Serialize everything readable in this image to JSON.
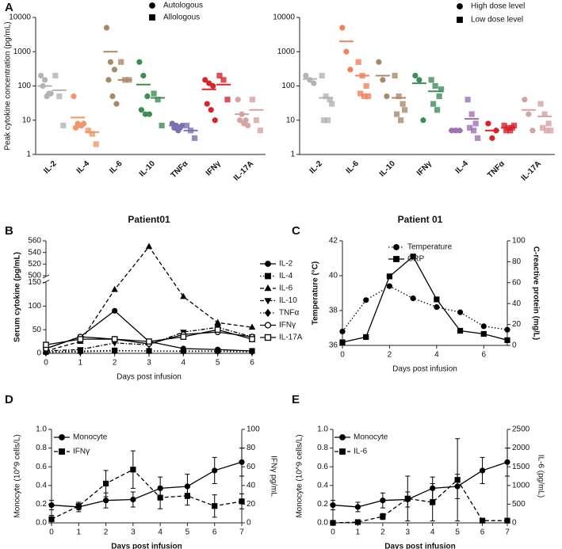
{
  "chart_data": [
    {
      "type": "dotplot",
      "panel": "A",
      "ylabel": "Peak cytokine concentration (pg/mL)",
      "ylog": true,
      "ylim": [
        1,
        10000
      ],
      "yticks": [
        1,
        10,
        100,
        1000,
        10000
      ],
      "categories": [
        "IL-2",
        "IL-4",
        "IL-6",
        "IL-10",
        "TNFα",
        "IFNγ",
        "IL-17A"
      ],
      "colors": [
        "#b3b3b3",
        "#f2956a",
        "#a88a68",
        "#3d8c52",
        "#7a70b2",
        "#d8232a",
        "#d6a3a3"
      ],
      "series": [
        {
          "name": "Autologous",
          "marker": "circle",
          "values": [
            [
              200,
              150,
              60,
              100,
              50,
              60
            ],
            [
              50,
              8,
              7,
              6,
              7,
              8
            ],
            [
              5000,
              500,
              300,
              150,
              50,
              30
            ],
            [
              500,
              200,
              50,
              20,
              15,
              15
            ],
            [
              8,
              7,
              6,
              6,
              5,
              7
            ],
            [
              150,
              120,
              100,
              30,
              20,
              10
            ],
            [
              40,
              15,
              10,
              10,
              8,
              7
            ]
          ],
          "means": [
            100,
            12,
            1000,
            110,
            7,
            80,
            15
          ]
        },
        {
          "name": "Allologous",
          "marker": "square",
          "values": [
            [
              200,
              50,
              7
            ],
            [
              5,
              4,
              2
            ],
            [
              500,
              150,
              150
            ],
            [
              60,
              40,
              7
            ],
            [
              7,
              5,
              3
            ],
            [
              200,
              150,
              40
            ],
            [
              40,
              10,
              5
            ]
          ],
          "means": [
            75,
            4.5,
            150,
            45,
            5,
            110,
            20
          ]
        }
      ]
    },
    {
      "type": "dotplot",
      "ylog": true,
      "ylim": [
        1,
        10000
      ],
      "yticks": [
        1,
        10,
        100,
        1000,
        10000
      ],
      "categories": [
        "IL-2",
        "IL-6",
        "IL-10",
        "IFNγ",
        "IL-4",
        "TNFα",
        "IL-17A"
      ],
      "colors": [
        "#b3b3b3",
        "#f2805a",
        "#a88a68",
        "#3d8c5a",
        "#a070b2",
        "#d8232a",
        "#d6a3a3"
      ],
      "series": [
        {
          "name": "High dose level",
          "marker": "circle",
          "values": [
            [
              200,
              150,
              120
            ],
            [
              5000,
              1000,
              300
            ],
            [
              500,
              150,
              50
            ],
            [
              200,
              150,
              10
            ],
            [
              5,
              5,
              5
            ],
            [
              8,
              3,
              5
            ],
            [
              40,
              15,
              5
            ]
          ],
          "means": [
            160,
            2000,
            200,
            120,
            5,
            5,
            20
          ]
        },
        {
          "name": "Low dose level",
          "marker": "square",
          "values": [
            [
              200,
              50,
              40,
              10,
              10,
              30
            ],
            [
              500,
              200,
              100,
              60,
              50,
              50
            ],
            [
              200,
              50,
              30,
              15,
              10,
              20
            ],
            [
              150,
              100,
              50,
              30,
              20,
              80
            ],
            [
              40,
              15,
              8,
              6,
              5,
              3
            ],
            [
              7,
              6,
              6,
              5,
              5,
              7
            ],
            [
              30,
              15,
              8,
              6,
              5,
              5
            ]
          ],
          "means": [
            45,
            200,
            45,
            70,
            11,
            6,
            13
          ]
        }
      ]
    },
    {
      "type": "line",
      "panel": "B",
      "title": "Patient01",
      "ylabel": "Serum cytokine  (pg/mL)",
      "xlabel": "Days post infusion",
      "ylim": [
        0,
        560
      ],
      "ybreak": [
        150,
        500
      ],
      "yticks": [
        0,
        50,
        100,
        150,
        500,
        520,
        540,
        560
      ],
      "xlim": [
        0,
        6
      ],
      "xticks": [
        0,
        1,
        2,
        3,
        4,
        5,
        6
      ],
      "x": [
        0,
        1,
        2,
        3,
        4,
        5,
        6
      ],
      "series": [
        {
          "name": "IL-2",
          "color": "#000000",
          "line": "solid",
          "marker": "circle",
          "values": [
            10,
            35,
            90,
            25,
            10,
            8,
            5
          ]
        },
        {
          "name": "IL-4",
          "color": "#000000",
          "line": "dotted",
          "marker": "square",
          "values": [
            3,
            5,
            6,
            5,
            5,
            5,
            5
          ]
        },
        {
          "name": "IL-6",
          "color": "#000000",
          "line": "dashed",
          "marker": "triangle",
          "values": [
            5,
            25,
            135,
            550,
            120,
            65,
            55
          ]
        },
        {
          "name": "IL-10",
          "color": "#000000",
          "line": "dashdot",
          "marker": "triangle-down",
          "values": [
            5,
            8,
            22,
            18,
            45,
            55,
            35
          ]
        },
        {
          "name": "TNFα",
          "color": "#000000",
          "line": "dotted",
          "marker": "diamond",
          "values": [
            2,
            3,
            5,
            5,
            4,
            4,
            3
          ]
        },
        {
          "name": "IFNγ",
          "color": "#000000",
          "line": "solid",
          "marker": "circle-open",
          "values": [
            10,
            35,
            30,
            20,
            40,
            45,
            35
          ]
        },
        {
          "name": "IL-17A",
          "color": "#000000",
          "line": "solid",
          "marker": "square-open",
          "values": [
            18,
            30,
            30,
            25,
            35,
            50,
            30
          ]
        }
      ]
    },
    {
      "type": "line",
      "panel": "C",
      "title": "Patient 01",
      "ylabel": "Temperature (°C)",
      "y2label": "C-reactive protein (mg/L)",
      "xlabel": "Days post infusion",
      "ylim": [
        36,
        42
      ],
      "yticks": [
        36,
        38,
        40,
        42
      ],
      "y2lim": [
        0,
        100
      ],
      "y2ticks": [
        0,
        20,
        40,
        60,
        80,
        100
      ],
      "xlim": [
        0,
        7
      ],
      "xticks": [
        0,
        2,
        4,
        6
      ],
      "x": [
        0,
        1,
        2,
        3,
        4,
        5,
        6,
        7
      ],
      "series": [
        {
          "name": "Temperature",
          "color": "#000000",
          "line": "dotted",
          "marker": "circle",
          "values": [
            36.8,
            38.6,
            39.4,
            38.7,
            38.2,
            37.9,
            37.1,
            36.9
          ]
        },
        {
          "name": "CRP",
          "color": "#000000",
          "line": "solid",
          "marker": "square",
          "axis": "y2",
          "values": [
            3,
            8,
            66,
            85,
            44,
            14,
            11,
            5
          ]
        }
      ]
    },
    {
      "type": "line",
      "panel": "D",
      "ylabel": "Monocyte  (10^9 cells/L)",
      "y2label": "IFNγ pg/mL",
      "xlabel": "Days post infusion",
      "xlabel_bold": true,
      "ylim": [
        0,
        1
      ],
      "yticks": [
        {
          "value": 0,
          "label": "0.0"
        },
        0.2,
        0.4,
        0.6,
        0.8,
        {
          "value": 1,
          "label": "1.0"
        }
      ],
      "y2lim": [
        0,
        100
      ],
      "y2ticks": [
        0,
        20,
        40,
        60,
        80,
        100
      ],
      "xlim": [
        0,
        7
      ],
      "xticks": [
        0,
        1,
        2,
        3,
        4,
        5,
        6,
        7
      ],
      "x": [
        0,
        1,
        2,
        3,
        4,
        5,
        6,
        7
      ],
      "series": [
        {
          "name": "Monocyte",
          "color": "#000000",
          "line": "solid",
          "marker": "circle",
          "values": [
            0.19,
            0.17,
            0.24,
            0.25,
            0.37,
            0.39,
            0.56,
            0.65
          ],
          "errors": [
            0.05,
            0.05,
            0.08,
            0.08,
            0.12,
            0.13,
            0.14,
            0.15
          ]
        },
        {
          "name": "IFNγ",
          "color": "#000000",
          "line": "dashed",
          "marker": "square",
          "axis": "y2",
          "values": [
            4,
            18,
            42,
            57,
            27,
            29,
            18,
            23
          ],
          "errors": [
            4,
            4,
            14,
            20,
            12,
            10,
            12,
            8
          ]
        }
      ]
    },
    {
      "type": "line",
      "panel": "E",
      "y2label": "IL-6 (pg/mL)",
      "ylabel": "Monocyte  (10^9 cells/L)",
      "xlabel": "Days post infusion",
      "xlabel_bold": true,
      "ylim": [
        0,
        1
      ],
      "yticks": [
        {
          "value": 0,
          "label": "0.0"
        },
        0.2,
        0.4,
        0.6,
        0.8,
        {
          "value": 1,
          "label": "1.0"
        }
      ],
      "y2lim": [
        0,
        2500
      ],
      "y2ticks": [
        0,
        500,
        1000,
        1500,
        2000,
        2500
      ],
      "xlim": [
        0,
        7
      ],
      "xticks": [
        0,
        1,
        2,
        3,
        4,
        5,
        6,
        7
      ],
      "x": [
        0,
        1,
        2,
        3,
        4,
        5,
        6,
        7
      ],
      "series": [
        {
          "name": "Monocyte",
          "color": "#000000",
          "line": "solid",
          "marker": "circle",
          "values": [
            0.19,
            0.17,
            0.24,
            0.25,
            0.37,
            0.39,
            0.56,
            0.65
          ],
          "errors": [
            0.05,
            0.05,
            0.08,
            0.08,
            0.12,
            0.13,
            0.14,
            0.15
          ]
        },
        {
          "name": "IL-6",
          "color": "#000000",
          "line": "dashed",
          "marker": "square",
          "axis": "y2",
          "values": [
            0,
            20,
            170,
            650,
            550,
            1150,
            60,
            60
          ],
          "errors": [
            0,
            20,
            80,
            600,
            500,
            1100,
            50,
            50
          ]
        }
      ]
    }
  ]
}
